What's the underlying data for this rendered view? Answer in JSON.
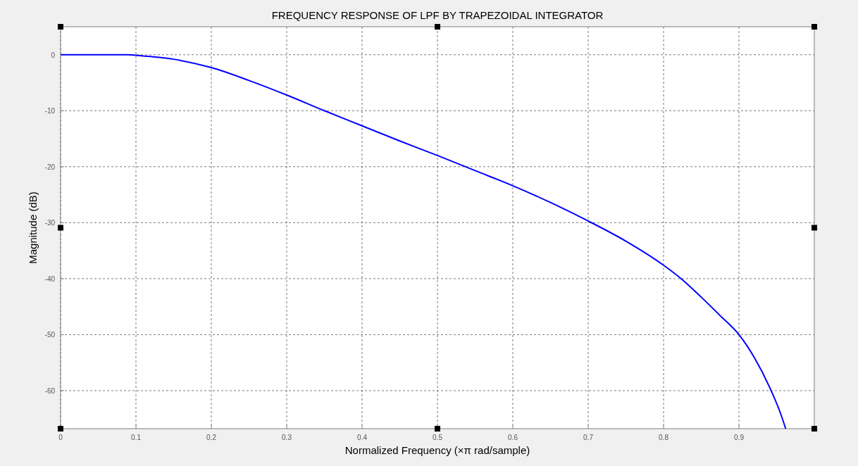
{
  "chart_data": {
    "type": "line",
    "title": "FREQUENCY RESPONSE OF LPF BY TRAPEZOIDAL INTEGRATOR",
    "xlabel": "Normalized Frequency (×π rad/sample)",
    "ylabel": "Magnitude (dB)",
    "x": [
      0,
      0.05,
      0.09,
      0.1,
      0.15,
      0.2,
      0.25,
      0.3,
      0.35,
      0.4,
      0.45,
      0.5,
      0.55,
      0.6,
      0.65,
      0.7,
      0.75,
      0.8,
      0.825,
      0.85,
      0.875,
      0.9,
      0.92,
      0.94,
      0.955,
      0.962
    ],
    "series": [
      {
        "color": "#0000ff",
        "values": [
          0,
          0,
          0,
          -0.1,
          -0.8,
          -2.3,
          -4.6,
          -7.2,
          -10,
          -12.7,
          -15.4,
          -18,
          -20.7,
          -23.4,
          -26.4,
          -29.7,
          -33.3,
          -37.6,
          -40.2,
          -43.3,
          -46.6,
          -50,
          -54,
          -59.2,
          -64,
          -66.8
        ]
      }
    ],
    "xlim": [
      0,
      1
    ],
    "xticks": [
      0,
      0.1,
      0.2,
      0.3,
      0.4,
      0.5,
      0.6,
      0.7,
      0.8,
      0.9
    ],
    "ylim": [
      -66.8,
      5
    ],
    "yticks": [
      0,
      -10,
      -20,
      -30,
      -40,
      -50,
      -60
    ],
    "grid": true,
    "line_style": "solid",
    "marker": "none"
  }
}
